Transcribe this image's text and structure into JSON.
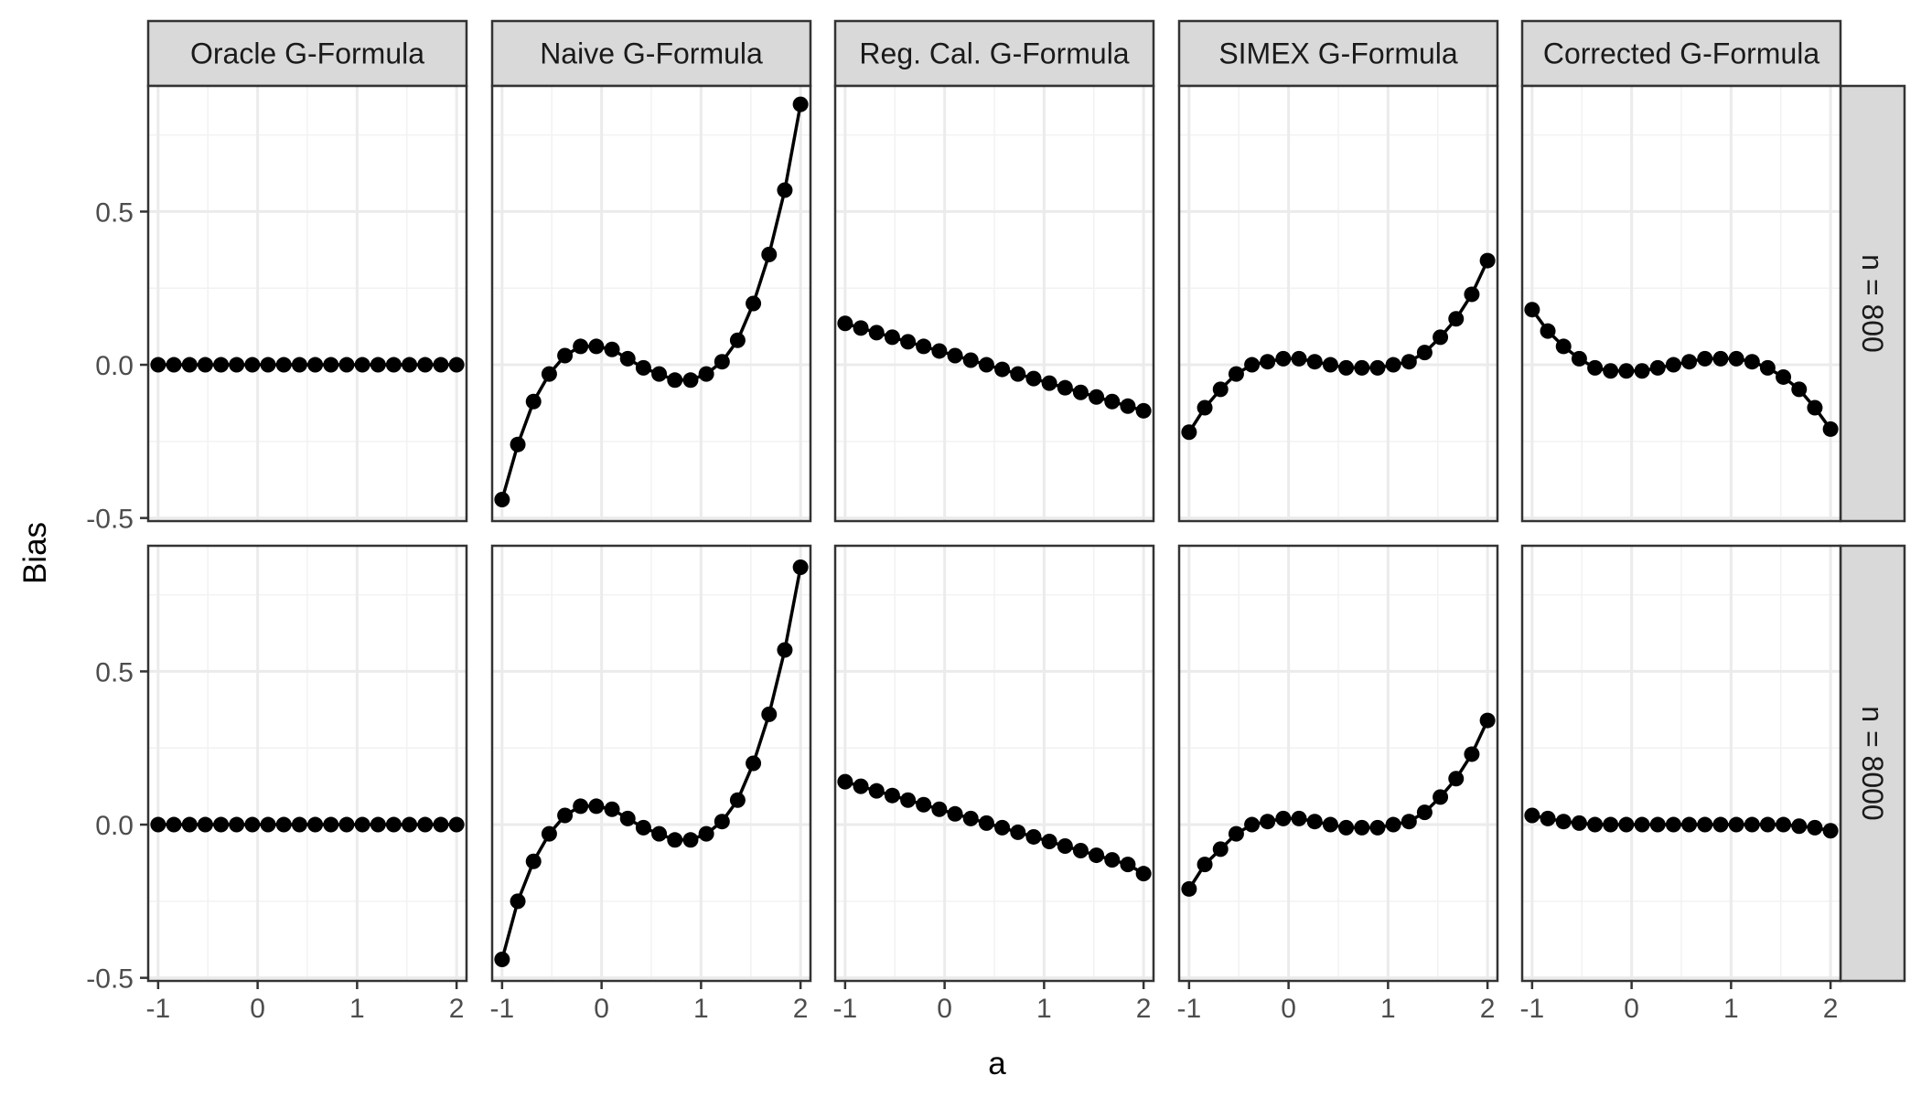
{
  "chart_data": {
    "type": "line",
    "xlabel": "a",
    "ylabel": "Bias",
    "xlim": [
      -1.1,
      2.1
    ],
    "ylim": [
      -0.51,
      0.91
    ],
    "x_ticks": [
      -1,
      0,
      1,
      2
    ],
    "y_ticks": [
      -0.5,
      0.0,
      0.5
    ],
    "x_tick_labels": [
      "-1",
      "0",
      "1",
      "2"
    ],
    "y_tick_labels": [
      "-0.5",
      "0.0",
      "0.5"
    ],
    "grid": true,
    "columns": [
      "Oracle G-Formula",
      "Naive G-Formula",
      "Reg. Cal. G-Formula",
      "SIMEX G-Formula",
      "Corrected G-Formula"
    ],
    "rows": [
      "n = 800",
      "n = 8000"
    ],
    "x": [
      -1.0,
      -0.842,
      -0.684,
      -0.526,
      -0.368,
      -0.211,
      -0.053,
      0.105,
      0.263,
      0.421,
      0.579,
      0.737,
      0.895,
      1.053,
      1.211,
      1.368,
      1.526,
      1.684,
      1.842,
      2.0
    ],
    "panels": [
      [
        [
          0.0,
          0.0,
          0.0,
          0.0,
          0.0,
          0.0,
          0.0,
          0.0,
          0.0,
          0.0,
          0.0,
          0.0,
          0.0,
          0.0,
          0.0,
          0.0,
          0.0,
          0.0,
          0.0,
          0.0
        ],
        [
          -0.44,
          -0.26,
          -0.12,
          -0.03,
          0.03,
          0.06,
          0.06,
          0.05,
          0.02,
          -0.01,
          -0.03,
          -0.05,
          -0.05,
          -0.03,
          0.01,
          0.08,
          0.2,
          0.36,
          0.57,
          0.85
        ],
        [
          0.135,
          0.12,
          0.105,
          0.09,
          0.075,
          0.06,
          0.045,
          0.03,
          0.015,
          0.0,
          -0.015,
          -0.03,
          -0.045,
          -0.06,
          -0.075,
          -0.09,
          -0.105,
          -0.12,
          -0.135,
          -0.15
        ],
        [
          -0.22,
          -0.14,
          -0.08,
          -0.03,
          0.0,
          0.01,
          0.02,
          0.02,
          0.01,
          0.0,
          -0.01,
          -0.01,
          -0.01,
          0.0,
          0.01,
          0.04,
          0.09,
          0.15,
          0.23,
          0.34
        ],
        [
          0.18,
          0.11,
          0.06,
          0.02,
          -0.01,
          -0.02,
          -0.02,
          -0.02,
          -0.01,
          0.0,
          0.01,
          0.02,
          0.02,
          0.02,
          0.01,
          -0.01,
          -0.04,
          -0.08,
          -0.14,
          -0.21
        ]
      ],
      [
        [
          0.0,
          0.0,
          0.0,
          0.0,
          0.0,
          0.0,
          0.0,
          0.0,
          0.0,
          0.0,
          0.0,
          0.0,
          0.0,
          0.0,
          0.0,
          0.0,
          0.0,
          0.0,
          0.0,
          0.0
        ],
        [
          -0.44,
          -0.25,
          -0.12,
          -0.03,
          0.03,
          0.06,
          0.06,
          0.05,
          0.02,
          -0.01,
          -0.03,
          -0.05,
          -0.05,
          -0.03,
          0.01,
          0.08,
          0.2,
          0.36,
          0.57,
          0.84
        ],
        [
          0.14,
          0.125,
          0.11,
          0.095,
          0.08,
          0.065,
          0.05,
          0.035,
          0.02,
          0.005,
          -0.01,
          -0.025,
          -0.04,
          -0.055,
          -0.07,
          -0.085,
          -0.1,
          -0.115,
          -0.13,
          -0.16
        ],
        [
          -0.21,
          -0.13,
          -0.08,
          -0.03,
          0.0,
          0.01,
          0.02,
          0.02,
          0.01,
          0.0,
          -0.01,
          -0.01,
          -0.01,
          0.0,
          0.01,
          0.04,
          0.09,
          0.15,
          0.23,
          0.34
        ],
        [
          0.03,
          0.02,
          0.01,
          0.005,
          0.0,
          0.0,
          0.0,
          0.0,
          0.0,
          0.0,
          0.0,
          0.0,
          0.0,
          0.0,
          0.0,
          0.0,
          0.0,
          -0.005,
          -0.01,
          -0.02
        ]
      ]
    ]
  }
}
